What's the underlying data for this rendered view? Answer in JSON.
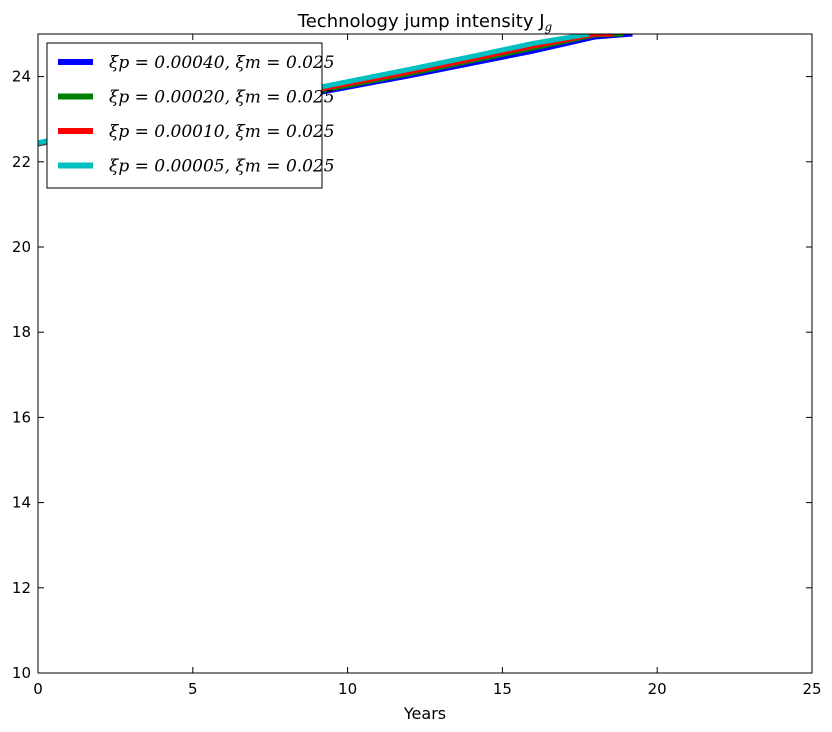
{
  "chart_data": {
    "type": "line",
    "title": "Technology jump intensity J",
    "title_subscript": "g",
    "xlabel": "Years",
    "ylabel": "",
    "xlim": [
      0,
      25
    ],
    "ylim": [
      10,
      25
    ],
    "xticks": [
      0,
      5,
      10,
      15,
      20,
      25
    ],
    "yticks": [
      10,
      12,
      14,
      16,
      18,
      20,
      22,
      24
    ],
    "grid": false,
    "legend_position": "top-left",
    "series": [
      {
        "name": "ξp = 0.00040, ξm = 0.025",
        "color": "#0000ff",
        "x": [
          0,
          2,
          4,
          6,
          8,
          10,
          12,
          14,
          16,
          18,
          19.2
        ],
        "y": [
          22.42,
          22.67,
          22.93,
          23.21,
          23.48,
          23.75,
          24.02,
          24.31,
          24.6,
          24.93,
          25.0
        ]
      },
      {
        "name": "ξp = 0.00020, ξm = 0.025",
        "color": "#008000",
        "x": [
          0,
          2,
          4,
          6,
          8,
          10,
          12,
          14,
          16,
          18,
          18.9
        ],
        "y": [
          22.43,
          22.69,
          22.96,
          23.24,
          23.52,
          23.79,
          24.07,
          24.37,
          24.67,
          24.98,
          25.0
        ]
      },
      {
        "name": "ξp = 0.00010, ξm = 0.025",
        "color": "#ff0000",
        "x": [
          0,
          2,
          4,
          6,
          8,
          10,
          12,
          14,
          16,
          18,
          18.6
        ],
        "y": [
          22.44,
          22.71,
          22.98,
          23.26,
          23.55,
          23.83,
          24.11,
          24.41,
          24.72,
          25.0,
          25.0
        ]
      },
      {
        "name": "ξp = 0.00005, ξm = 0.025",
        "color": "#00bfbf",
        "x": [
          0,
          2,
          4,
          6,
          8,
          10,
          12,
          14,
          16,
          17.8
        ],
        "y": [
          22.45,
          22.73,
          23.01,
          23.3,
          23.59,
          23.88,
          24.17,
          24.47,
          24.78,
          25.0
        ]
      }
    ]
  }
}
